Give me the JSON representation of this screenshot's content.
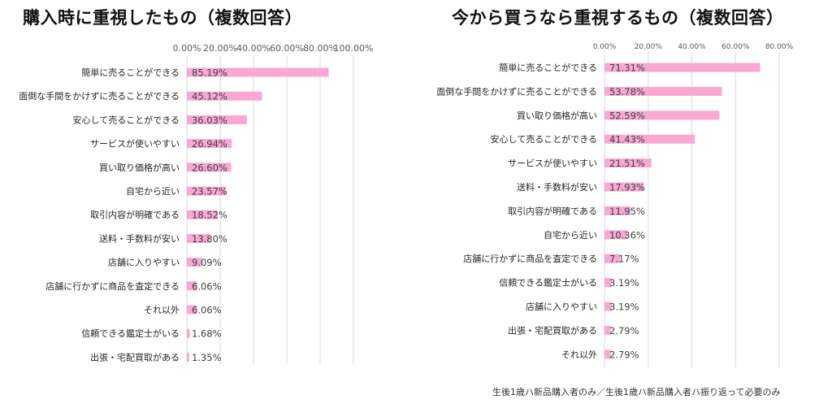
{
  "charts": [
    {
      "title": "購入時に重視したもの（複数回答）",
      "chart_data": {
        "type": "bar",
        "orientation": "horizontal",
        "title": "購入時に重視したもの（複数回答）",
        "xlim": [
          0,
          100
        ],
        "ticks": [
          "0.00%",
          "20.00%",
          "40.00%",
          "60.00%",
          "80.00%",
          "100.00%"
        ],
        "grid": true,
        "color": "#F9A8D4",
        "categories": [
          "簡単に売ることができる",
          "面倒な手間をかけずに売ることができる",
          "安心して売ることができる",
          "サービスが使いやすい",
          "買い取り価格が高い",
          "自宅から近い",
          "取引内容が明確である",
          "送料・手数料が安い",
          "店舗に入りやすい",
          "店舗に行かずに商品を査定できる",
          "それ以外",
          "信頼できる鑑定士がいる",
          "出張・宅配買取がある"
        ],
        "values": [
          85.19,
          45.12,
          36.03,
          26.94,
          26.6,
          23.57,
          18.52,
          13.8,
          9.09,
          6.06,
          6.06,
          1.68,
          1.35
        ],
        "labels": [
          "85.19%",
          "45.12%",
          "36.03%",
          "26.94%",
          "26.60%",
          "23.57%",
          "18.52%",
          "13.80%",
          "9.09%",
          "6.06%",
          "6.06%",
          "1.68%",
          "1.35%"
        ]
      }
    },
    {
      "title": "今から買うなら重視するもの（複数回答）",
      "chart_data": {
        "type": "bar",
        "orientation": "horizontal",
        "title": "今から買うなら重視するもの（複数回答）",
        "xlim": [
          0,
          80
        ],
        "ticks": [
          "0.00%",
          "20.00%",
          "40.00%",
          "60.00%",
          "80.00%"
        ],
        "grid": true,
        "color": "#F9A8D4",
        "categories": [
          "簡単に売ることができる",
          "面倒な手間をかけずに売ることができる",
          "買い取り価格が高い",
          "安心して売ることができる",
          "サービスが使いやすい",
          "送料・手数料が安い",
          "取引内容が明確である",
          "自宅から近い",
          "店舗に行かずに商品を査定できる",
          "信頼できる鑑定士がいる",
          "店舗に入りやすい",
          "出張・宅配買取がある",
          "それ以外"
        ],
        "values": [
          71.31,
          53.78,
          52.59,
          41.43,
          21.51,
          17.93,
          11.95,
          10.36,
          7.17,
          3.19,
          3.19,
          2.79,
          2.79
        ],
        "labels": [
          "71.31%",
          "53.78%",
          "52.59%",
          "41.43%",
          "21.51%",
          "17.93%",
          "11.95%",
          "10.36%",
          "7.17%",
          "3.19%",
          "3.19%",
          "2.79%",
          "2.79%"
        ]
      }
    }
  ],
  "footnote": "生後1歳ハ新品購入者のみ／生後1歳ハ新品購入者ハ振り返って必要のみ"
}
